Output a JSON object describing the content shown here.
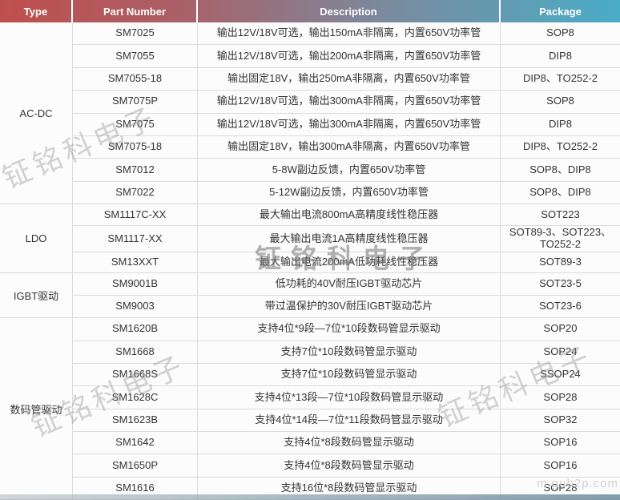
{
  "header": {
    "columns": [
      "Type",
      "Part Number",
      "Description",
      "Package"
    ]
  },
  "colors": {
    "header_left": "#bf4f4d",
    "header_right": "#4aacc7",
    "row_border": "#dcdcdc",
    "text": "#333333"
  },
  "sections": [
    {
      "type": "AC-DC",
      "rows": [
        {
          "part": "SM7025",
          "desc": "输出12V/18V可选，输出150mA非隔离，内置650V功率管",
          "pkg": "SOP8"
        },
        {
          "part": "SM7055",
          "desc": "输出12V/18V可选，输出200mA非隔离，内置650V功率管",
          "pkg": "DIP8"
        },
        {
          "part": "SM7055-18",
          "desc": "输出固定18V，输出250mA非隔离，内置650V功率管",
          "pkg": "DIP8、TO252-2"
        },
        {
          "part": "SM7075P",
          "desc": "输出12V/18V可选，输出300mA非隔离，内置650V功率管",
          "pkg": "SOP8"
        },
        {
          "part": "SM7075",
          "desc": "输出12V/18V可选，输出300mA非隔离，内置650V功率管",
          "pkg": "DIP8"
        },
        {
          "part": "SM7075-18",
          "desc": "输出固定18V，输出300mA非隔离，内置650V功率管",
          "pkg": "DIP8、TO252-2"
        },
        {
          "part": "SM7012",
          "desc": "5-8W副边反馈，内置650V功率管",
          "pkg": "SOP8、DIP8"
        },
        {
          "part": "SM7022",
          "desc": "5-12W副边反馈，内置650V功率管",
          "pkg": "SOP8、DIP8"
        }
      ]
    },
    {
      "type": "LDO",
      "rows": [
        {
          "part": "SM1117C-XX",
          "desc": "最大输出电流800mA高精度线性稳压器",
          "pkg": "SOT223"
        },
        {
          "part": "SM1117-XX",
          "desc": "最大输出电流1A高精度线性稳压器",
          "pkg": "SOT89-3、SOT223、TO252-2"
        },
        {
          "part": "SM13XXT",
          "desc": "最大输出电流200mA低功耗线性稳压器",
          "pkg": "SOT89-3"
        }
      ]
    },
    {
      "type": "IGBT驱动",
      "rows": [
        {
          "part": "SM9001B",
          "desc": "低功耗的40V耐压IGBT驱动芯片",
          "pkg": "SOT23-5"
        },
        {
          "part": "SM9003",
          "desc": "带过温保护的30V耐压IGBT驱动芯片",
          "pkg": "SOT23-6"
        }
      ]
    },
    {
      "type": "数码管驱动",
      "rows": [
        {
          "part": "SM1620B",
          "desc": "支持4位*9段—7位*10段数码管显示驱动",
          "pkg": "SOP20"
        },
        {
          "part": "SM1668",
          "desc": "支持7位*10段数码管显示驱动",
          "pkg": "SOP24"
        },
        {
          "part": "SM1668S",
          "desc": "支持7位*10段数码管显示驱动",
          "pkg": "SSOP24"
        },
        {
          "part": "SM1628C",
          "desc": "支持4位*13段—7位*10段数码管显示驱动",
          "pkg": "SOP28"
        },
        {
          "part": "SM1623B",
          "desc": "支持4位*14段—7位*11段数码管显示驱动",
          "pkg": "SOP32"
        },
        {
          "part": "SM1642",
          "desc": "支持4位*8段数码管显示驱动",
          "pkg": "SOP16"
        },
        {
          "part": "SM1650P",
          "desc": "支持4位*8段数码管显示驱动",
          "pkg": "SOP16"
        },
        {
          "part": "SM1616",
          "desc": "支持16位*8段数码管显示驱动",
          "pkg": "SOP28"
        }
      ]
    }
  ],
  "watermarks": {
    "brand": "钲铭科电子",
    "site": "m.gub2p.com"
  }
}
